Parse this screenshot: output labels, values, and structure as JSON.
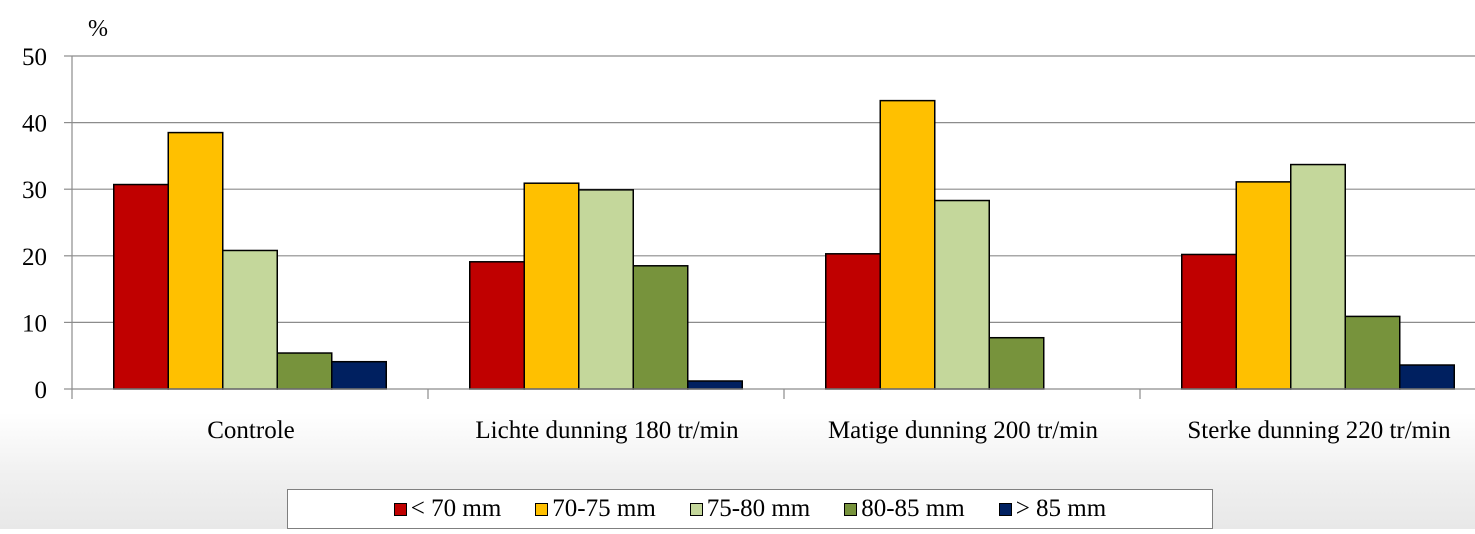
{
  "chart_data": {
    "type": "bar",
    "ylabel": "%",
    "ylim": [
      0,
      50
    ],
    "yticks": [
      0,
      10,
      20,
      30,
      40,
      50
    ],
    "grid": true,
    "legend_position": "bottom",
    "categories": [
      "Controle",
      "Lichte dunning 180 tr/min",
      "Matige dunning 200 tr/min",
      "Sterke dunning 220 tr/min"
    ],
    "series": [
      {
        "name": "< 70 mm",
        "color": "#c00000",
        "values": [
          30.7,
          19.1,
          20.3,
          20.2
        ]
      },
      {
        "name": "70-75 mm",
        "color": "#ffc000",
        "values": [
          38.5,
          30.9,
          43.3,
          31.1
        ]
      },
      {
        "name": "75-80 mm",
        "color": "#c4d79b",
        "values": [
          20.8,
          29.9,
          28.3,
          33.7
        ]
      },
      {
        "name": "80-85 mm",
        "color": "#77933c",
        "values": [
          5.4,
          18.5,
          7.7,
          10.9
        ]
      },
      {
        "name": "> 85 mm",
        "color": "#002060",
        "values": [
          4.1,
          1.2,
          0,
          3.6
        ]
      }
    ]
  }
}
